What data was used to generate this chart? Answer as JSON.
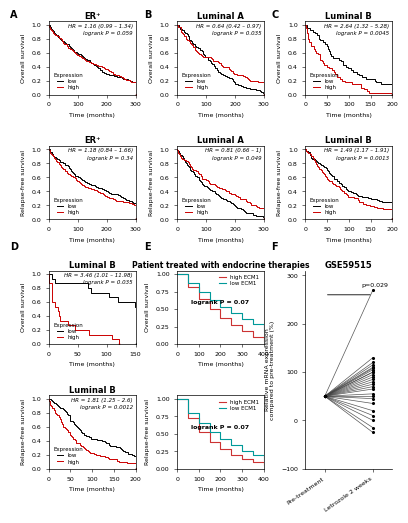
{
  "panels": {
    "A_title": "ER⁺",
    "B_title": "Luminal A",
    "C_title": "Luminal B",
    "D_title": "Luminal B",
    "E_title": "Patient treated with endocrine therapies",
    "F_title": "GSE59515"
  },
  "KM_curves": {
    "A_OS": {
      "hr_text": "HR = 1.16 (0.99 – 1.34)",
      "logrank_text": "logrank P = 0.059",
      "low_color": "#000000",
      "high_color": "#cc0000",
      "xmax": 300,
      "ylabel": "Overall survival",
      "low_scale": 200,
      "high_scale": 180,
      "n_low": 200,
      "n_high": 200,
      "seed": 10
    },
    "A_RFS": {
      "hr_text": "HR = 1.18 (0.84 – 1.66)",
      "logrank_text": "logrank P = 0.34",
      "low_color": "#000000",
      "high_color": "#cc0000",
      "xmax": 300,
      "ylabel": "Relapse-free survival",
      "low_scale": 200,
      "high_scale": 175,
      "n_low": 200,
      "n_high": 200,
      "seed": 11
    },
    "B_OS": {
      "hr_text": "HR = 0.64 (0.42 – 0.97)",
      "logrank_text": "logrank P = 0.035",
      "low_color": "#000000",
      "high_color": "#cc0000",
      "xmax": 300,
      "ylabel": "Overall survival",
      "low_scale": 130,
      "high_scale": 200,
      "n_low": 80,
      "n_high": 80,
      "seed": 20
    },
    "B_RFS": {
      "hr_text": "HR = 0.81 (0.66 – 1)",
      "logrank_text": "logrank P = 0.049",
      "low_color": "#000000",
      "high_color": "#cc0000",
      "xmax": 300,
      "ylabel": "Relapse-free survival",
      "low_scale": 120,
      "high_scale": 160,
      "n_low": 120,
      "n_high": 120,
      "seed": 21
    },
    "C_OS": {
      "hr_text": "HR = 2.64 (1.32 – 5.28)",
      "logrank_text": "logrank P = 0.0045",
      "low_color": "#000000",
      "high_color": "#cc0000",
      "xmax": 200,
      "ylabel": "Overall survival",
      "low_scale": 120,
      "high_scale": 50,
      "n_low": 40,
      "n_high": 40,
      "seed": 30
    },
    "C_RFS": {
      "hr_text": "HR = 1.49 (1.17 – 1.91)",
      "logrank_text": "logrank P = 0.0013",
      "low_color": "#000000",
      "high_color": "#cc0000",
      "xmax": 200,
      "ylabel": "Relapse-free survival",
      "low_scale": 150,
      "high_scale": 90,
      "n_low": 120,
      "n_high": 120,
      "seed": 31
    },
    "D_OS": {
      "hr_text": "HR = 3.46 (1.01 – 11.98)",
      "logrank_text": "logrank P = 0.035",
      "low_color": "#000000",
      "high_color": "#cc0000",
      "xmax": 150,
      "ylabel": "Overall survival",
      "low_scale": 200,
      "high_scale": 50,
      "n_low": 15,
      "n_high": 15,
      "seed": 40
    },
    "D_RFS": {
      "hr_text": "HR = 1.81 (1.25 – 2.6)",
      "logrank_text": "logrank P = 0.0012",
      "low_color": "#000000",
      "high_color": "#cc0000",
      "xmax": 200,
      "ylabel": "Relapse-free survival",
      "low_scale": 150,
      "high_scale": 75,
      "n_low": 80,
      "n_high": 80,
      "seed": 41
    }
  },
  "E_OS": {
    "legend_high": "high ECM1",
    "legend_low": "low ECM1",
    "logrank_text": "logrank P = 0.07",
    "high_color": "#cc3333",
    "low_color": "#009999",
    "xmax": 400,
    "ylabel": "Overall survival",
    "t_vals": [
      0,
      50,
      100,
      150,
      200,
      250,
      300,
      350,
      400
    ],
    "s_high": [
      1.0,
      0.82,
      0.65,
      0.5,
      0.37,
      0.27,
      0.18,
      0.1,
      0.05
    ],
    "s_low": [
      1.0,
      0.88,
      0.75,
      0.63,
      0.53,
      0.44,
      0.36,
      0.28,
      0.18
    ]
  },
  "E_RFS": {
    "legend_high": "high ECM1",
    "legend_low": "low ECM1",
    "logrank_text": "logrank P = 0.07",
    "high_color": "#cc3333",
    "low_color": "#009999",
    "xmax": 400,
    "ylabel": "Relapse-free survival",
    "t_vals": [
      0,
      50,
      100,
      150,
      200,
      250,
      300,
      350,
      400
    ],
    "s_high": [
      1.0,
      0.72,
      0.52,
      0.38,
      0.28,
      0.2,
      0.14,
      0.09,
      0.05
    ],
    "s_low": [
      1.0,
      0.8,
      0.65,
      0.52,
      0.42,
      0.34,
      0.26,
      0.19,
      0.12
    ]
  },
  "panel_F": {
    "p_text": "p=0.029",
    "ylabel": "Relative mRNA expression\ncompared to pre-treatment (%)",
    "xlabel1": "Pre-treatment",
    "xlabel2": "Letrozole 2 weeks",
    "ymin": -100,
    "ymax": 310,
    "yticks": [
      -100,
      0,
      100,
      200,
      300
    ],
    "pre_values": [
      50,
      50,
      50,
      50,
      50,
      50,
      50,
      50,
      50,
      50,
      50,
      50,
      50,
      50,
      50,
      50,
      50,
      50,
      50,
      50,
      50,
      50,
      50,
      50,
      50
    ],
    "post_values": [
      270,
      130,
      120,
      115,
      110,
      108,
      105,
      100,
      100,
      95,
      90,
      85,
      80,
      75,
      70,
      65,
      55,
      50,
      45,
      35,
      20,
      10,
      0,
      -15,
      -25
    ]
  },
  "bg_color": "#ffffff",
  "tick_labelsize": 4.5,
  "title_fontsize": 6.0,
  "annotation_fontsize": 4.0,
  "legend_fontsize": 4.0,
  "xlabel_fontsize": 4.5,
  "ylabel_fontsize": 4.5
}
